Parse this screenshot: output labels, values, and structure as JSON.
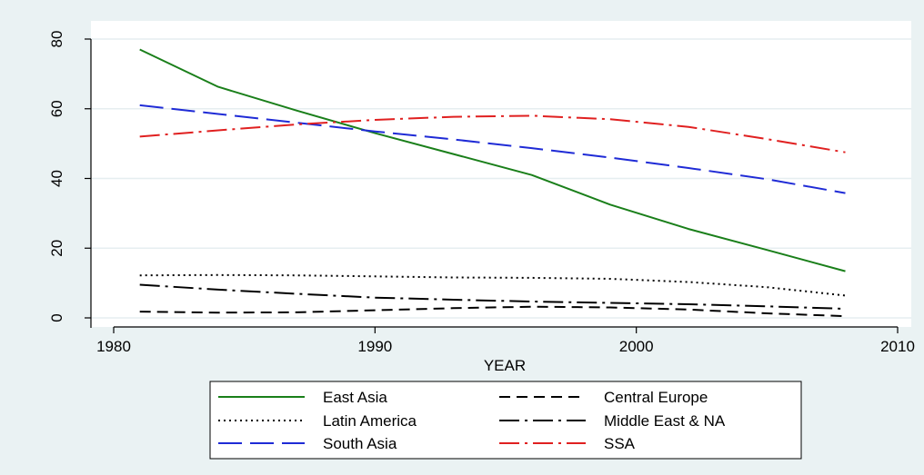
{
  "chart_data": {
    "type": "line",
    "xlabel": "YEAR",
    "ylabel": "",
    "xlim": [
      1980,
      2010
    ],
    "ylim": [
      0,
      80
    ],
    "x_ticks": [
      1980,
      1990,
      2000,
      2010
    ],
    "y_ticks": [
      0,
      20,
      40,
      60,
      80
    ],
    "grid": true,
    "legend_position": "bottom",
    "series": [
      {
        "name": "East Asia",
        "color": "#1a7f1a",
        "dash": "solid",
        "x": [
          1981,
          1984,
          1987,
          1990,
          1993,
          1996,
          1999,
          2002,
          2005,
          2008
        ],
        "y": [
          77,
          66.3,
          59.5,
          53,
          47,
          41,
          32.5,
          25.5,
          19.5,
          13.4
        ]
      },
      {
        "name": "Central Europe",
        "color": "#000000",
        "dash": "dash",
        "x": [
          1981,
          1984,
          1987,
          1990,
          1993,
          1996,
          1999,
          2002,
          2005,
          2008
        ],
        "y": [
          1.8,
          1.5,
          1.6,
          2.2,
          2.8,
          3.2,
          3.0,
          2.4,
          1.3,
          0.5
        ]
      },
      {
        "name": "Latin America",
        "color": "#000000",
        "dash": "dot",
        "x": [
          1981,
          1984,
          1987,
          1990,
          1993,
          1996,
          1999,
          2002,
          2005,
          2008
        ],
        "y": [
          12.2,
          12.3,
          12.2,
          11.9,
          11.6,
          11.5,
          11.2,
          10.3,
          8.8,
          6.4
        ]
      },
      {
        "name": "Middle East & NA",
        "color": "#000000",
        "dash": "dashdot",
        "x": [
          1981,
          1984,
          1987,
          1990,
          1993,
          1996,
          1999,
          2002,
          2005,
          2008
        ],
        "y": [
          9.5,
          8.1,
          6.9,
          5.8,
          5.2,
          4.7,
          4.3,
          3.9,
          3.3,
          2.6
        ]
      },
      {
        "name": "South Asia",
        "color": "#1f2bd6",
        "dash": "longdash",
        "x": [
          1981,
          1984,
          1987,
          1990,
          1993,
          1996,
          1999,
          2002,
          2005,
          2008
        ],
        "y": [
          61,
          58.5,
          56,
          53.5,
          51.2,
          48.7,
          46,
          43,
          39.8,
          35.8
        ]
      },
      {
        "name": "SSA",
        "color": "#e02020",
        "dash": "dashdot",
        "x": [
          1981,
          1984,
          1987,
          1990,
          1993,
          1996,
          1999,
          2002,
          2005,
          2008
        ],
        "y": [
          52,
          53.8,
          55.5,
          56.8,
          57.7,
          58,
          57,
          54.8,
          51.3,
          47.5
        ]
      }
    ]
  }
}
